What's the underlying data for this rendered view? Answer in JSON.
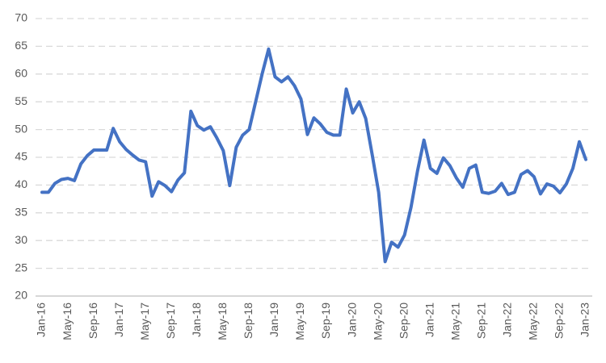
{
  "chart_data": {
    "type": "line",
    "categories": [
      "Jan-16",
      null,
      null,
      null,
      "May-16",
      null,
      null,
      null,
      "Sep-16",
      null,
      null,
      null,
      "Jan-17",
      null,
      null,
      null,
      "May-17",
      null,
      null,
      null,
      "Sep-17",
      null,
      null,
      null,
      "Jan-18",
      null,
      null,
      null,
      "May-18",
      null,
      null,
      null,
      "Sep-18",
      null,
      null,
      null,
      "Jan-19",
      null,
      null,
      null,
      "May-19",
      null,
      null,
      null,
      "Sep-19",
      null,
      null,
      null,
      "Jan-20",
      null,
      null,
      null,
      "May-20",
      null,
      null,
      null,
      "Sep-20",
      null,
      null,
      null,
      "Jan-21",
      null,
      null,
      null,
      "May-21",
      null,
      null,
      null,
      "Sep-21",
      null,
      null,
      null,
      "Jan-22",
      null,
      null,
      null,
      "May-22",
      null,
      null,
      null,
      "Sep-22",
      null,
      null,
      null,
      "Jan-23"
    ],
    "series": [
      {
        "color": "#4472c4",
        "values": [
          38.7,
          38.7,
          40.3,
          41.0,
          41.2,
          40.8,
          43.8,
          45.3,
          46.3,
          46.3,
          46.3,
          50.2,
          47.8,
          46.4,
          45.4,
          44.5,
          44.2,
          38.0,
          40.6,
          39.9,
          38.8,
          40.9,
          42.2,
          53.3,
          50.7,
          49.9,
          50.5,
          48.5,
          46.2,
          39.9,
          46.8,
          49.0,
          50.0,
          55.0,
          60.0,
          64.5,
          59.5,
          58.6,
          59.5,
          57.9,
          55.5,
          49.1,
          52.1,
          51.0,
          49.5,
          49.0,
          49.0,
          57.3,
          53.0,
          55.0,
          52.0,
          45.5,
          38.7,
          26.2,
          29.7,
          28.8,
          31.0,
          36.0,
          42.5,
          48.1,
          43.0,
          42.1,
          44.9,
          43.5,
          41.3,
          39.6,
          43.0,
          43.6,
          38.7,
          38.5,
          38.9,
          40.3,
          38.3,
          38.7,
          41.9,
          42.6,
          41.5,
          38.4,
          40.2,
          39.8,
          38.6,
          40.2,
          43.0,
          47.8,
          44.6
        ]
      }
    ],
    "ylim": [
      20,
      70
    ],
    "yticks": [
      20,
      25,
      30,
      35,
      40,
      45,
      50,
      55,
      60,
      65,
      70
    ],
    "grid": true
  }
}
